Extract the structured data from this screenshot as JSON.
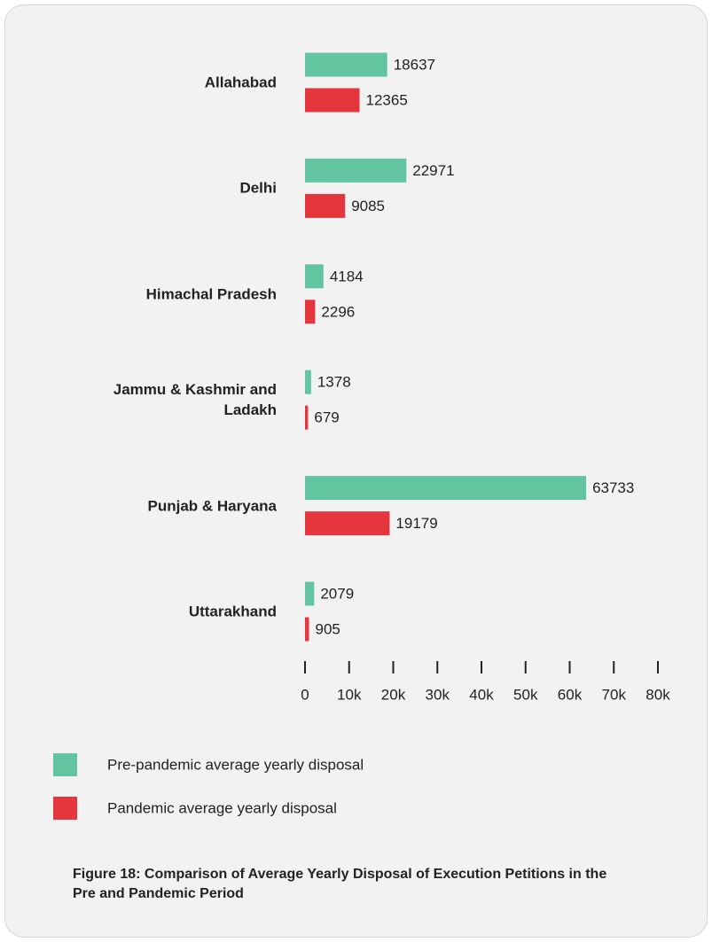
{
  "chart_data": {
    "type": "bar",
    "orientation": "horizontal",
    "title": "Figure 18: Comparison of Average Yearly Disposal of Execution Petitions in the Pre and Pandemic Period",
    "categories": [
      "Allahabad",
      "Delhi",
      "Himachal Pradesh",
      "Jammu & Kashmir and Ladakh",
      "Punjab & Haryana",
      "Uttarakhand"
    ],
    "series": [
      {
        "name": "Pre-pandemic average yearly disposal",
        "color": "#63c5a0",
        "values": [
          18637,
          22971,
          4184,
          1378,
          63733,
          2079
        ]
      },
      {
        "name": "Pandemic average yearly disposal",
        "color": "#e5363d",
        "values": [
          12365,
          9085,
          2296,
          679,
          19179,
          905
        ]
      }
    ],
    "xlim": [
      0,
      80000
    ],
    "xticks": [
      0,
      {
        "value": 10000,
        "label": "10k"
      },
      {
        "value": 20000,
        "label": "20k"
      },
      {
        "value": 30000,
        "label": "30k"
      },
      {
        "value": 40000,
        "label": "40k"
      },
      {
        "value": 50000,
        "label": "50k"
      },
      {
        "value": 60000,
        "label": "60k"
      },
      {
        "value": 70000,
        "label": "70k"
      },
      {
        "value": 80000,
        "label": "80k"
      }
    ],
    "grid": false
  }
}
